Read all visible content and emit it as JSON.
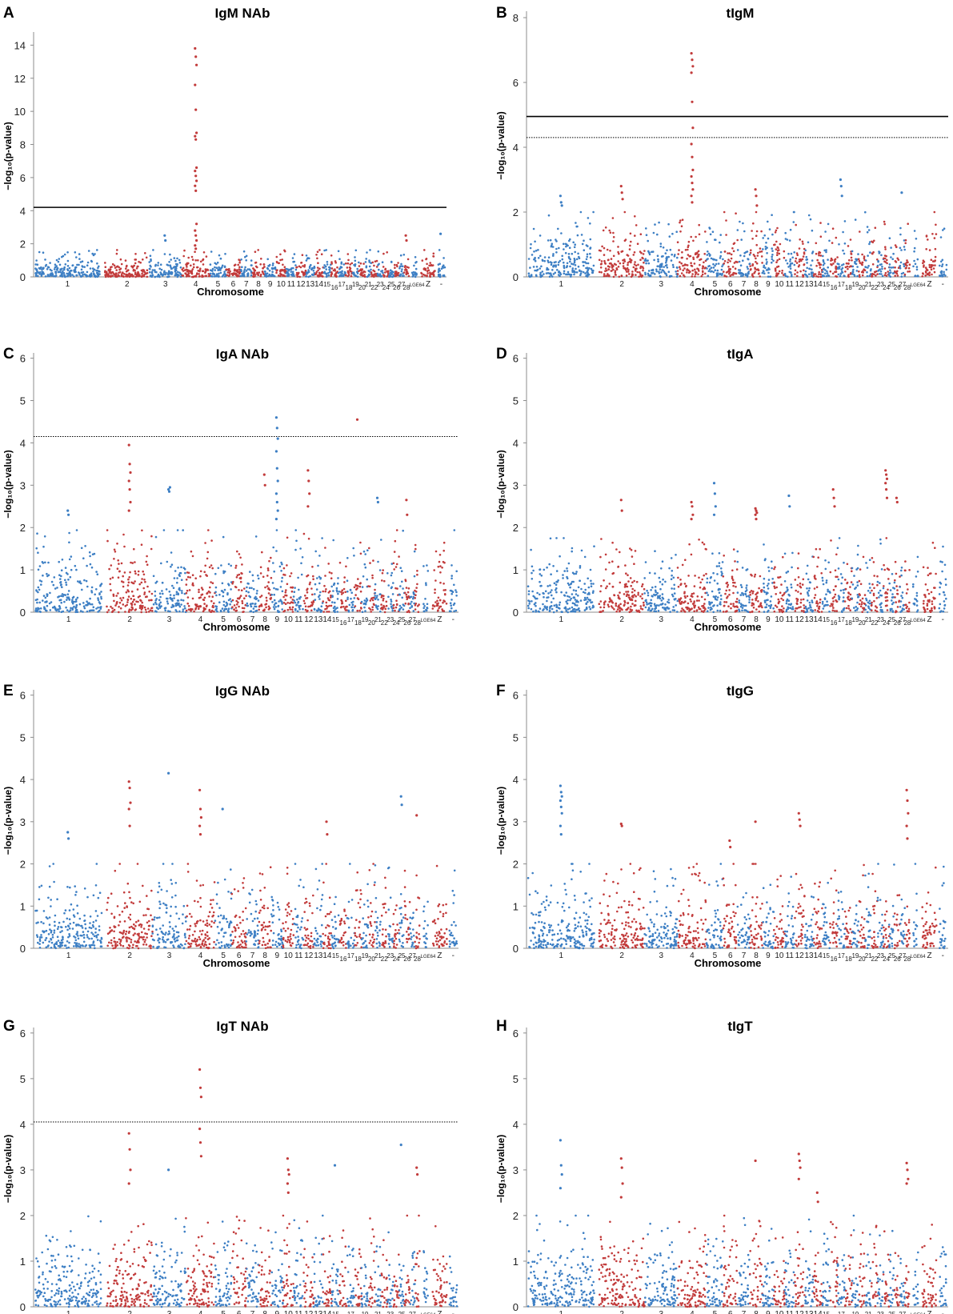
{
  "figure": {
    "colors": {
      "blue": "#3d7fc4",
      "red": "#c23b3b",
      "axis": "#8c8c8c",
      "line": "#000000"
    },
    "xlabel": "Chromosome",
    "ylabel": "−log₁₀(p-value)",
    "chromosome_labels": [
      "1",
      "2",
      "3",
      "4",
      "5",
      "6",
      "7",
      "8",
      "9",
      "10",
      "11",
      "12",
      "13",
      "14",
      "15",
      "16",
      "17",
      "18",
      "19",
      "20",
      "21",
      "22",
      "23",
      "24",
      "25",
      "26",
      "27",
      "28",
      "LGE64",
      "Z",
      "-"
    ]
  },
  "chart_data": [
    {
      "panel": "A",
      "title": "IgM NAb",
      "type": "scatter",
      "ylim": [
        0,
        14.6
      ],
      "yticks": [
        0,
        2,
        4,
        6,
        8,
        10,
        12,
        14
      ],
      "xlabel": "Chromosome",
      "ylabel": "−log₁₀(p-value)",
      "solid_threshold": 4.2,
      "dotted_threshold": null,
      "peaks": [
        {
          "chromosome": "4",
          "values": [
            13.8,
            13.3,
            12.8,
            11.6,
            10.1,
            8.7,
            8.5,
            8.3,
            6.6,
            6.4,
            6.1,
            5.8,
            5.5,
            5.2,
            3.2,
            2.8,
            2.5,
            2.2,
            1.9,
            1.7
          ]
        },
        {
          "chromosome": "3",
          "values": [
            2.5,
            2.2
          ]
        },
        {
          "chromosome": "28",
          "values": [
            2.5,
            2.2
          ]
        },
        {
          "chromosome": "-",
          "values": [
            2.6
          ]
        }
      ],
      "base_level": 1.3
    },
    {
      "panel": "B",
      "title": "tIgM",
      "type": "scatter",
      "ylim": [
        0,
        8.1
      ],
      "yticks": [
        0,
        2,
        4,
        6,
        8
      ],
      "xlabel": "Chromosome",
      "ylabel": "−log₁₀(p-value)",
      "solid_threshold": 4.95,
      "dotted_threshold": 4.3,
      "peaks": [
        {
          "chromosome": "4",
          "values": [
            6.9,
            6.7,
            6.5,
            6.3,
            5.4,
            4.6,
            4.1,
            3.7,
            3.3,
            3.1,
            2.9,
            2.7,
            2.5,
            2.3
          ]
        },
        {
          "chromosome": "1",
          "values": [
            2.5,
            2.3,
            2.2
          ]
        },
        {
          "chromosome": "2",
          "values": [
            2.8,
            2.6,
            2.4
          ]
        },
        {
          "chromosome": "8",
          "values": [
            2.7,
            2.5,
            2.2
          ]
        },
        {
          "chromosome": "17",
          "values": [
            3.0,
            2.8,
            2.5
          ]
        },
        {
          "chromosome": "27",
          "values": [
            2.6
          ]
        }
      ],
      "base_level": 1.6
    },
    {
      "panel": "C",
      "title": "IgA NAb",
      "type": "scatter",
      "ylim": [
        0,
        6.05
      ],
      "yticks": [
        0,
        1,
        2,
        3,
        4,
        5,
        6
      ],
      "xlabel": "Chromosome",
      "ylabel": "−log₁₀(p-value)",
      "solid_threshold": null,
      "dotted_threshold": 4.15,
      "peaks": [
        {
          "chromosome": "9",
          "values": [
            4.6,
            4.35,
            4.1,
            3.8,
            3.4,
            3.1,
            2.8,
            2.6,
            2.4,
            2.2
          ]
        },
        {
          "chromosome": "18",
          "values": [
            4.55
          ]
        },
        {
          "chromosome": "2",
          "values": [
            3.95,
            3.5,
            3.3,
            3.1,
            2.9,
            2.6,
            2.4
          ]
        },
        {
          "chromosome": "12",
          "values": [
            3.35,
            3.1,
            2.8,
            2.5
          ]
        },
        {
          "chromosome": "8",
          "values": [
            3.25,
            3.0
          ]
        },
        {
          "chromosome": "3",
          "values": [
            2.9,
            2.85,
            2.95
          ]
        },
        {
          "chromosome": "1",
          "values": [
            2.4,
            2.3
          ]
        },
        {
          "chromosome": "21",
          "values": [
            2.7,
            2.6
          ]
        },
        {
          "chromosome": "26",
          "values": [
            2.65,
            2.3
          ]
        }
      ],
      "base_level": 1.55
    },
    {
      "panel": "D",
      "title": "tIgA",
      "type": "scatter",
      "ylim": [
        0,
        6.05
      ],
      "yticks": [
        0,
        1,
        2,
        3,
        4,
        5,
        6
      ],
      "xlabel": "Chromosome",
      "ylabel": "−log₁₀(p-value)",
      "solid_threshold": null,
      "dotted_threshold": null,
      "peaks": [
        {
          "chromosome": "24",
          "values": [
            3.35,
            3.25,
            3.15,
            3.05,
            2.9,
            2.7
          ]
        },
        {
          "chromosome": "5",
          "values": [
            3.05,
            2.8,
            2.5,
            2.3
          ]
        },
        {
          "chromosome": "16",
          "values": [
            2.9,
            2.7,
            2.5
          ]
        },
        {
          "chromosome": "4",
          "values": [
            2.6,
            2.5,
            2.3,
            2.2
          ]
        },
        {
          "chromosome": "8",
          "values": [
            2.45,
            2.4,
            2.35,
            2.3,
            2.2
          ]
        },
        {
          "chromosome": "11",
          "values": [
            2.75,
            2.5
          ]
        },
        {
          "chromosome": "2",
          "values": [
            2.65,
            2.4
          ]
        },
        {
          "chromosome": "26",
          "values": [
            2.7,
            2.6
          ]
        }
      ],
      "base_level": 1.4
    },
    {
      "panel": "E",
      "title": "IgG NAb",
      "type": "scatter",
      "ylim": [
        0,
        6.05
      ],
      "yticks": [
        0,
        1,
        2,
        3,
        4,
        5,
        6
      ],
      "xlabel": "Chromosome",
      "ylabel": "−log₁₀(p-value)",
      "solid_threshold": null,
      "dotted_threshold": null,
      "peaks": [
        {
          "chromosome": "3",
          "values": [
            4.15
          ]
        },
        {
          "chromosome": "2",
          "values": [
            3.95,
            3.8,
            3.45,
            3.3,
            2.9
          ]
        },
        {
          "chromosome": "4",
          "values": [
            3.75,
            3.3,
            3.1,
            2.9,
            2.7
          ]
        },
        {
          "chromosome": "5",
          "values": [
            3.3
          ]
        },
        {
          "chromosome": "25",
          "values": [
            3.6,
            3.4
          ]
        },
        {
          "chromosome": "28",
          "values": [
            3.15
          ]
        },
        {
          "chromosome": "14",
          "values": [
            3.0,
            2.7
          ]
        },
        {
          "chromosome": "1",
          "values": [
            2.75,
            2.6
          ]
        }
      ],
      "base_level": 1.6
    },
    {
      "panel": "F",
      "title": "tIgG",
      "type": "scatter",
      "ylim": [
        0,
        6.05
      ],
      "yticks": [
        0,
        1,
        2,
        3,
        4,
        5,
        6
      ],
      "xlabel": "Chromosome",
      "ylabel": "−log₁₀(p-value)",
      "solid_threshold": null,
      "dotted_threshold": null,
      "peaks": [
        {
          "chromosome": "1",
          "values": [
            3.85,
            3.7,
            3.6,
            3.5,
            3.35,
            3.2,
            2.9,
            2.7
          ]
        },
        {
          "chromosome": "28",
          "values": [
            3.75,
            3.5,
            3.2,
            2.9,
            2.6
          ]
        },
        {
          "chromosome": "12",
          "values": [
            3.2,
            3.05,
            2.9
          ]
        },
        {
          "chromosome": "8",
          "values": [
            3.0
          ]
        },
        {
          "chromosome": "2",
          "values": [
            2.95,
            2.9
          ]
        },
        {
          "chromosome": "6",
          "values": [
            2.55,
            2.4
          ]
        }
      ],
      "base_level": 1.6
    },
    {
      "panel": "G",
      "title": "IgT NAb",
      "type": "scatter",
      "ylim": [
        0,
        6.05
      ],
      "yticks": [
        0,
        1,
        2,
        3,
        4,
        5,
        6
      ],
      "xlabel": "Chromosome",
      "ylabel": "−log₁₀(p-value)",
      "solid_threshold": null,
      "dotted_threshold": 4.05,
      "peaks": [
        {
          "chromosome": "4",
          "values": [
            5.2,
            4.8,
            4.6,
            3.9,
            3.6,
            3.3
          ]
        },
        {
          "chromosome": "2",
          "values": [
            3.8,
            3.45,
            3.0,
            2.7
          ]
        },
        {
          "chromosome": "10",
          "values": [
            3.25,
            3.0,
            2.9,
            2.7,
            2.5
          ]
        },
        {
          "chromosome": "25",
          "values": [
            3.55
          ]
        },
        {
          "chromosome": "15",
          "values": [
            3.1
          ]
        },
        {
          "chromosome": "3",
          "values": [
            3.0
          ]
        },
        {
          "chromosome": "28",
          "values": [
            3.05,
            2.9
          ]
        }
      ],
      "base_level": 1.6
    },
    {
      "panel": "H",
      "title": "tIgT",
      "type": "scatter",
      "ylim": [
        0,
        6.05
      ],
      "yticks": [
        0,
        1,
        2,
        3,
        4,
        5,
        6
      ],
      "xlabel": "Chromosome",
      "ylabel": "−log₁₀(p-value)",
      "solid_threshold": null,
      "dotted_threshold": null,
      "peaks": [
        {
          "chromosome": "1",
          "values": [
            3.65,
            3.1,
            2.9,
            2.6
          ]
        },
        {
          "chromosome": "12",
          "values": [
            3.35,
            3.2,
            3.05,
            2.8
          ]
        },
        {
          "chromosome": "2",
          "values": [
            3.25,
            3.05,
            2.7,
            2.4
          ]
        },
        {
          "chromosome": "28",
          "values": [
            3.15,
            3.0,
            2.8,
            2.7
          ]
        },
        {
          "chromosome": "8",
          "values": [
            3.2
          ]
        },
        {
          "chromosome": "14",
          "values": [
            2.5,
            2.3
          ]
        }
      ],
      "base_level": 1.6
    }
  ]
}
